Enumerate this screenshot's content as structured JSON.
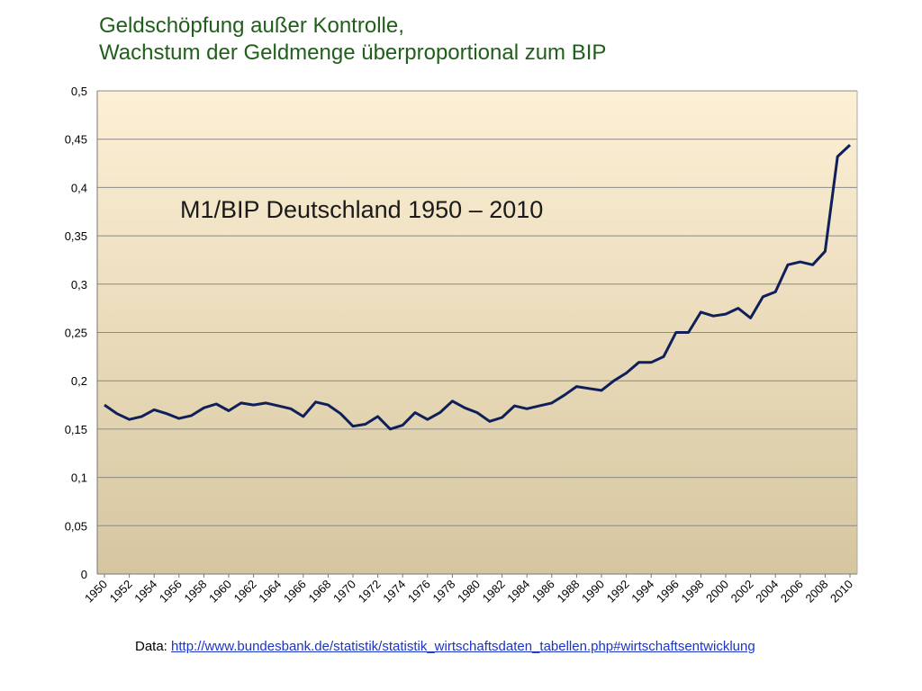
{
  "slide": {
    "title_line1": "Geldschöpfung außer Kontrolle,",
    "title_line2": "Wachstum der Geldmenge überproportional zum BIP"
  },
  "source": {
    "label": "Data:",
    "url": "http://www.bundesbank.de/statistik/statistik_wirtschaftsdaten_tabellen.php#wirtschaftsentwicklung"
  },
  "colors": {
    "title": "#1f5f1a",
    "line": "#0f1f5a",
    "plot_top": "#fdf0d5",
    "plot_bottom": "#d6c6a0",
    "grid": "#8a8a8a"
  },
  "chart_data": {
    "type": "line",
    "title": "M1/BIP Deutschland 1950 – 2010",
    "xlabel": "",
    "ylabel": "",
    "ylim": [
      0,
      0.5
    ],
    "yticks": [
      "0",
      "0,05",
      "0,1",
      "0,15",
      "0,2",
      "0,25",
      "0,3",
      "0,35",
      "0,4",
      "0,45",
      "0,5"
    ],
    "xticks": [
      "1950",
      "1952",
      "1954",
      "1956",
      "1958",
      "1960",
      "1962",
      "1964",
      "1966",
      "1968",
      "1970",
      "1972",
      "1974",
      "1976",
      "1978",
      "1980",
      "1982",
      "1984",
      "1986",
      "1988",
      "1990",
      "1992",
      "1994",
      "1996",
      "1998",
      "2000",
      "2002",
      "2004",
      "2006",
      "2008",
      "2010"
    ],
    "grid": true,
    "legend": "none",
    "series": [
      {
        "x": [
          1950,
          1951,
          1952,
          1953,
          1954,
          1955,
          1956,
          1957,
          1958,
          1959,
          1960,
          1961,
          1962,
          1963,
          1964,
          1965,
          1966,
          1967,
          1968,
          1969,
          1970,
          1971,
          1972,
          1973,
          1974,
          1975,
          1976,
          1977,
          1978,
          1979,
          1980,
          1981,
          1982,
          1983,
          1984,
          1985,
          1986,
          1987,
          1988,
          1989,
          1990,
          1991,
          1992,
          1993,
          1994,
          1995,
          1996,
          1997,
          1998,
          1999,
          2000,
          2001,
          2002,
          2003,
          2004,
          2005,
          2006,
          2007,
          2008,
          2009,
          2010
        ],
        "values": [
          0.175,
          0.166,
          0.16,
          0.163,
          0.17,
          0.166,
          0.161,
          0.164,
          0.172,
          0.176,
          0.169,
          0.177,
          0.175,
          0.177,
          0.174,
          0.171,
          0.163,
          0.178,
          0.175,
          0.166,
          0.153,
          0.155,
          0.163,
          0.15,
          0.154,
          0.167,
          0.16,
          0.167,
          0.179,
          0.172,
          0.167,
          0.158,
          0.162,
          0.174,
          0.171,
          0.174,
          0.177,
          0.185,
          0.194,
          0.192,
          0.19,
          0.2,
          0.208,
          0.219,
          0.219,
          0.225,
          0.25,
          0.25,
          0.271,
          0.267,
          0.269,
          0.275,
          0.265,
          0.287,
          0.292,
          0.32,
          0.323,
          0.32,
          0.334,
          0.432,
          0.444
        ]
      }
    ]
  }
}
